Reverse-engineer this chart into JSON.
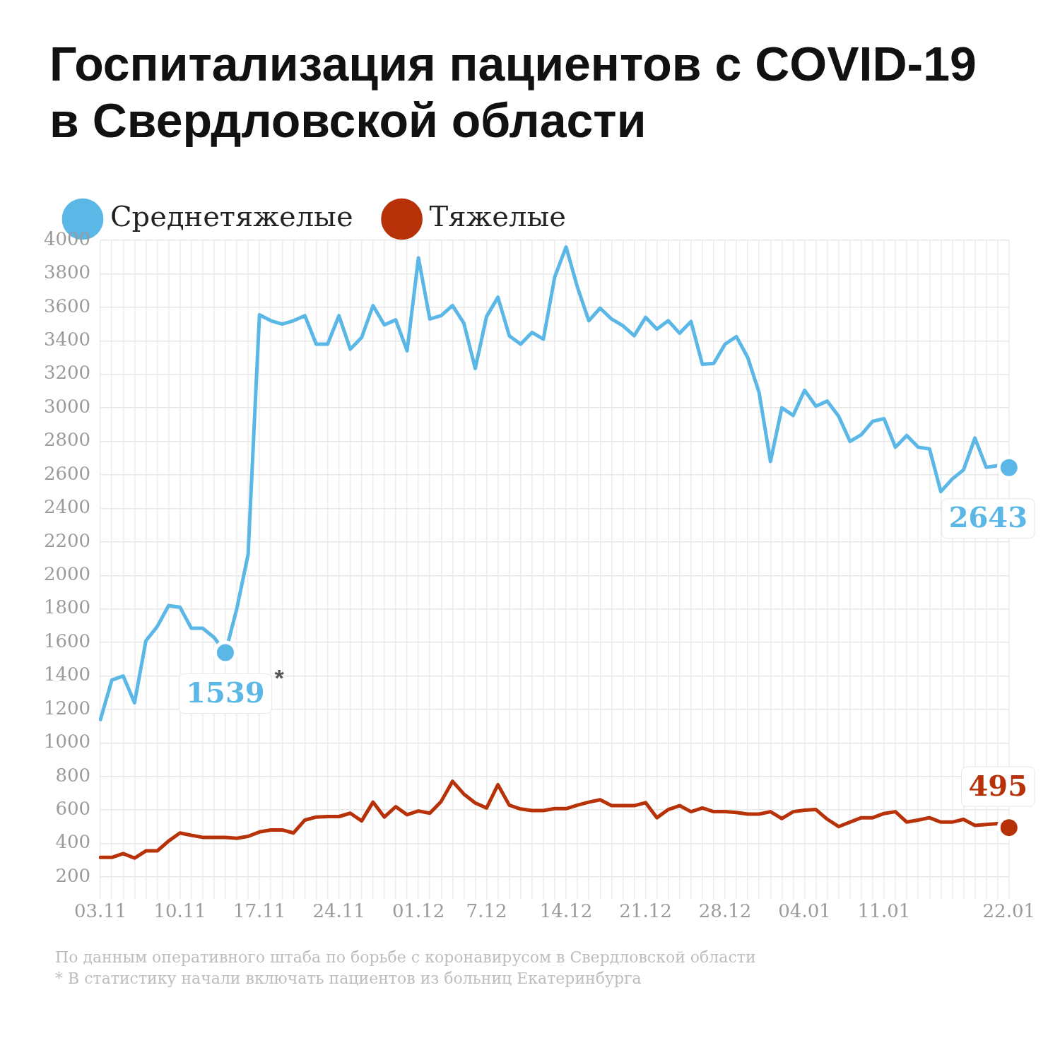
{
  "chart_data": {
    "type": "line",
    "title": "Госпитализация пациентов с COVID-19 в Свердловской области",
    "categories": [
      "03.11",
      null,
      null,
      null,
      null,
      null,
      null,
      "10.11",
      null,
      null,
      null,
      null,
      null,
      null,
      "17.11",
      null,
      null,
      null,
      null,
      null,
      null,
      "24.11",
      null,
      null,
      null,
      null,
      null,
      null,
      "01.12",
      null,
      null,
      null,
      null,
      null,
      "7.12",
      null,
      null,
      null,
      null,
      null,
      null,
      "14.12",
      null,
      null,
      null,
      null,
      null,
      null,
      "21.12",
      null,
      null,
      null,
      null,
      null,
      null,
      "28.12",
      null,
      null,
      null,
      null,
      null,
      null,
      "04.01",
      null,
      null,
      null,
      null,
      null,
      null,
      "11.01",
      null,
      null,
      null,
      null,
      null,
      null,
      null,
      null,
      null,
      null,
      "22.01"
    ],
    "series": [
      {
        "name": "Среднетяжелые",
        "color": "#5ab7e6",
        "values": [
          1140,
          1375,
          1400,
          1240,
          1610,
          1695,
          1820,
          1810,
          1685,
          1685,
          1630,
          1539,
          1800,
          2125,
          3555,
          3520,
          3500,
          3520,
          3550,
          3380,
          3380,
          3550,
          3350,
          3420,
          3610,
          3495,
          3525,
          3340,
          3895,
          3530,
          3550,
          3610,
          3505,
          3235,
          3545,
          3660,
          3430,
          3380,
          3450,
          3410,
          3780,
          3960,
          3720,
          3520,
          3595,
          3530,
          3490,
          3430,
          3540,
          3470,
          3520,
          3445,
          3515,
          3260,
          3265,
          3380,
          3425,
          3300,
          3090,
          2680,
          3000,
          2955,
          3105,
          3010,
          3040,
          2950,
          2800,
          2840,
          2920,
          2935,
          2765,
          2835,
          2765,
          2755,
          2500,
          2575,
          2630,
          2820,
          2645,
          2655,
          2643
        ],
        "value_labels": [
          null,
          null,
          null,
          null,
          null,
          null,
          null,
          null,
          null,
          null,
          null,
          "1539",
          null,
          null,
          null,
          null,
          null,
          null,
          null,
          null,
          null,
          null,
          null,
          null,
          null,
          null,
          null,
          null,
          null,
          null,
          null,
          null,
          null,
          null,
          null,
          null,
          null,
          null,
          null,
          null,
          null,
          null,
          null,
          null,
          null,
          null,
          null,
          null,
          null,
          null,
          null,
          null,
          null,
          null,
          null,
          null,
          null,
          null,
          null,
          null,
          null,
          null,
          null,
          null,
          null,
          null,
          null,
          null,
          null,
          null,
          null,
          null,
          null,
          null,
          null,
          null,
          null,
          null,
          null,
          null,
          "2643"
        ]
      },
      {
        "name": "Тяжелые",
        "color": "#b83209",
        "values": [
          317,
          317,
          340,
          313,
          356,
          356,
          415,
          463,
          449,
          437,
          437,
          437,
          431,
          443,
          469,
          481,
          481,
          463,
          540,
          558,
          561,
          561,
          581,
          535,
          647,
          558,
          620,
          572,
          594,
          581,
          651,
          771,
          695,
          642,
          612,
          751,
          629,
          606,
          597,
          597,
          608,
          608,
          629,
          647,
          661,
          626,
          626,
          626,
          644,
          554,
          603,
          626,
          590,
          612,
          590,
          590,
          585,
          576,
          576,
          590,
          549,
          590,
          599,
          603,
          545,
          501,
          528,
          554,
          554,
          579,
          590,
          528,
          540,
          554,
          528,
          528,
          544,
          508,
          513,
          519,
          495
        ],
        "value_labels": [
          null,
          null,
          null,
          null,
          null,
          null,
          null,
          null,
          null,
          null,
          null,
          null,
          null,
          null,
          null,
          null,
          null,
          null,
          null,
          null,
          null,
          null,
          null,
          null,
          null,
          null,
          null,
          null,
          null,
          null,
          null,
          null,
          null,
          null,
          null,
          null,
          null,
          null,
          null,
          null,
          null,
          null,
          null,
          null,
          null,
          null,
          null,
          null,
          null,
          null,
          null,
          null,
          null,
          null,
          null,
          null,
          null,
          null,
          null,
          null,
          null,
          null,
          null,
          null,
          null,
          null,
          null,
          null,
          null,
          null,
          null,
          null,
          null,
          null,
          null,
          null,
          null,
          null,
          null,
          null,
          "495"
        ]
      }
    ],
    "ylim": [
      100,
      4000
    ],
    "yticks": [
      200,
      400,
      600,
      800,
      1000,
      1200,
      1400,
      1600,
      1800,
      2000,
      2200,
      2400,
      2600,
      2800,
      3000,
      3200,
      3400,
      3600,
      3800,
      4000
    ],
    "grid": true,
    "legend": "top left",
    "line_style": "solid",
    "annotations": [
      "*",
      "По данным оперативного штаба по борьбе с коронавирусом в Свердловской области",
      "* В статистику начали включать пациентов из больниц Екатеринбурга"
    ]
  }
}
